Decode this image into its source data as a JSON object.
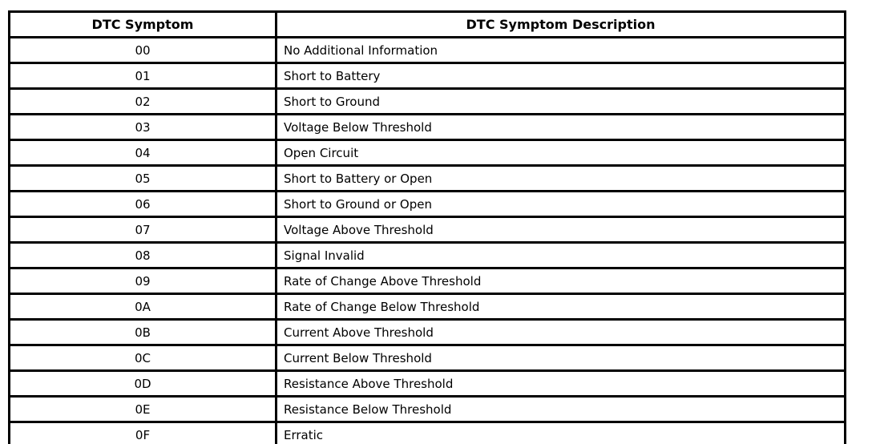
{
  "table": {
    "columns": {
      "code": "DTC Symptom",
      "description": "DTC Symptom Description"
    },
    "rows": [
      {
        "code": "00",
        "description": "No Additional Information"
      },
      {
        "code": "01",
        "description": "Short to Battery"
      },
      {
        "code": "02",
        "description": "Short to Ground"
      },
      {
        "code": "03",
        "description": "Voltage Below Threshold"
      },
      {
        "code": "04",
        "description": "Open Circuit"
      },
      {
        "code": "05",
        "description": "Short to Battery or Open"
      },
      {
        "code": "06",
        "description": "Short to Ground or Open"
      },
      {
        "code": "07",
        "description": "Voltage Above Threshold"
      },
      {
        "code": "08",
        "description": "Signal Invalid"
      },
      {
        "code": "09",
        "description": "Rate of Change Above Threshold"
      },
      {
        "code": "0A",
        "description": "Rate of Change Below Threshold"
      },
      {
        "code": "0B",
        "description": "Current Above Threshold"
      },
      {
        "code": "0C",
        "description": "Current Below Threshold"
      },
      {
        "code": "0D",
        "description": "Resistance Above Threshold"
      },
      {
        "code": "0E",
        "description": "Resistance Below Threshold"
      },
      {
        "code": "0F",
        "description": "Erratic"
      }
    ],
    "border_color": "#000000",
    "text_color": "#000000",
    "background_color": "#ffffff"
  }
}
